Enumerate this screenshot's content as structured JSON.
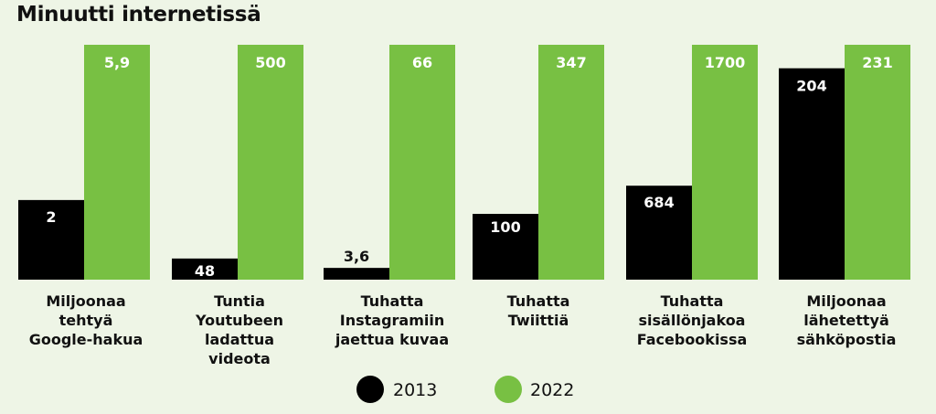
{
  "colors": {
    "background": "#eef5e6",
    "series_2013": "#000000",
    "series_2022": "#78c043",
    "label_on_dark": "#ffffff",
    "label_on_green": "#ffffff",
    "text": "#111111"
  },
  "chart_data": {
    "type": "bar",
    "title": "Minuutti internetissä",
    "categories": [
      [
        "Miljoonaa",
        "tehtyä",
        "Google-hakua"
      ],
      [
        "Tuntia",
        "Youtubeen",
        "ladattua",
        "videota"
      ],
      [
        "Tuhatta",
        "Instagramiin",
        "jaettua kuvaa"
      ],
      [
        "Tuhatta",
        "Twiittiä"
      ],
      [
        "Tuhatta",
        "sisällönjakoa",
        "Facebookissa"
      ],
      [
        "Miljoonaa",
        "lähetettyä",
        "sähköpostia"
      ]
    ],
    "series": [
      {
        "name": "2013",
        "values": [
          2,
          48,
          3.6,
          100,
          684,
          204
        ],
        "labels": [
          "2",
          "48",
          "3,6",
          "100",
          "684",
          "204"
        ],
        "relative_heights": [
          0.339,
          0.09,
          0.05,
          0.28,
          0.4,
          0.9
        ]
      },
      {
        "name": "2022",
        "values": [
          5.9,
          500,
          66,
          347,
          1700,
          231
        ],
        "labels": [
          "5,9",
          "500",
          "66",
          "347",
          "1700",
          "231"
        ],
        "relative_heights": [
          1,
          1,
          1,
          1,
          1,
          1
        ]
      }
    ],
    "legend": {
      "position": "bottom",
      "entries": [
        "2013",
        "2022"
      ]
    },
    "grid": false,
    "note": "Each category is scaled independently; the 2022 bar is the full height."
  }
}
